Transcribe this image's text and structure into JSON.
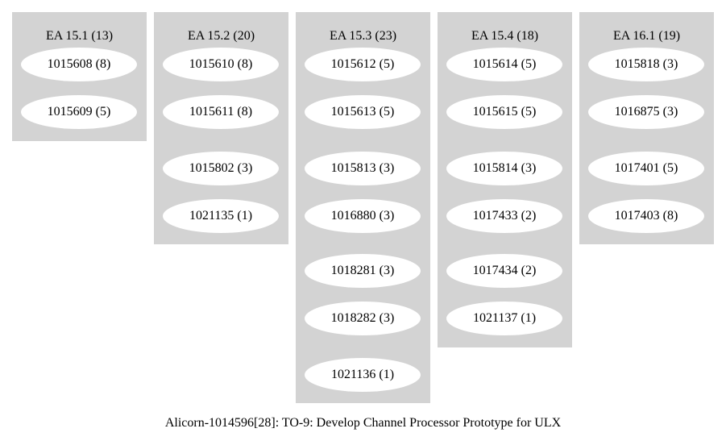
{
  "graph": {
    "caption": "Alicorn-1014596[28]: TO-9: Develop Channel Processor Prototype for ULX",
    "clusters": [
      {
        "label": "EA 15.1 (13)",
        "nodes": [
          "1015608 (8)",
          "1015609 (5)"
        ]
      },
      {
        "label": "EA 15.2 (20)",
        "nodes": [
          "1015610 (8)",
          "1015611 (8)",
          "1015802 (3)",
          "1021135 (1)"
        ]
      },
      {
        "label": "EA 15.3 (23)",
        "nodes": [
          "1015612 (5)",
          "1015613 (5)",
          "1015813 (3)",
          "1016880 (3)",
          "1018281 (3)",
          "1018282 (3)",
          "1021136 (1)"
        ]
      },
      {
        "label": "EA 15.4 (18)",
        "nodes": [
          "1015614 (5)",
          "1015615 (5)",
          "1015814 (3)",
          "1017433 (2)",
          "1017434 (2)",
          "1021137 (1)"
        ]
      },
      {
        "label": "EA 16.1 (19)",
        "nodes": [
          "1015818 (3)",
          "1016875 (3)",
          "1017401 (5)",
          "1017403 (8)"
        ]
      }
    ]
  }
}
